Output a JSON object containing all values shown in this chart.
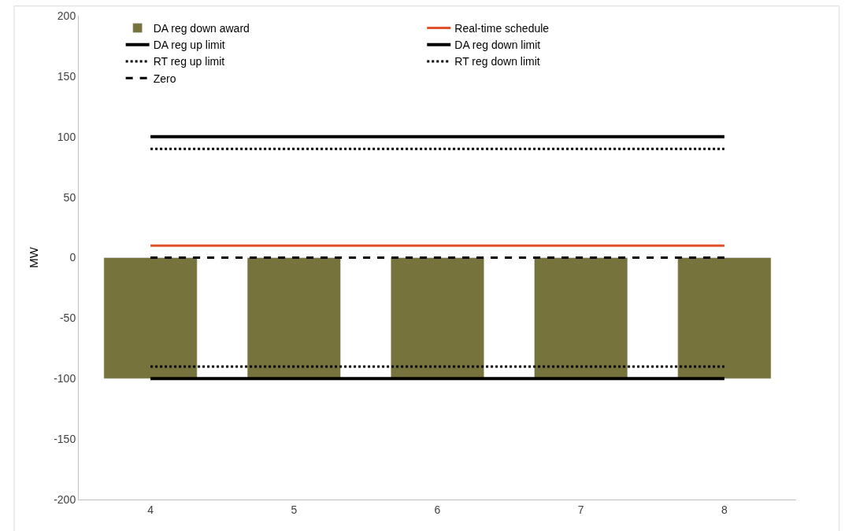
{
  "chart_data": {
    "type": "bar",
    "ylabel": "MW",
    "categories": [
      "4",
      "5",
      "6",
      "7",
      "8"
    ],
    "series": [
      {
        "name": "DA reg down award",
        "color": "#77733d",
        "values": [
          -100,
          -100,
          -100,
          -100,
          -100
        ]
      },
      {
        "name": "Real-time schedule",
        "type": "line",
        "color": "#e0502a",
        "line_style": "solid",
        "values": [
          10,
          10,
          10,
          10,
          10
        ]
      },
      {
        "name": "DA reg up limit",
        "type": "line",
        "color": "#000000",
        "line_style": "solid",
        "values": [
          100,
          100,
          100,
          100,
          100
        ]
      },
      {
        "name": "DA reg down limit",
        "type": "line",
        "color": "#000000",
        "line_style": "solid",
        "values": [
          -100,
          -100,
          -100,
          -100,
          -100
        ]
      },
      {
        "name": "RT reg up limit",
        "type": "line",
        "color": "#000000",
        "line_style": "dotted",
        "values": [
          90,
          90,
          90,
          90,
          90
        ]
      },
      {
        "name": "RT reg down limit",
        "type": "line",
        "color": "#000000",
        "line_style": "dotted",
        "values": [
          -90,
          -90,
          -90,
          -90,
          -90
        ]
      },
      {
        "name": "Zero",
        "type": "line",
        "color": "#000000",
        "line_style": "dashed",
        "values": [
          0,
          0,
          0,
          0,
          0
        ]
      }
    ],
    "ylim": [
      -200,
      200
    ],
    "yticks": [
      -200,
      -150,
      -100,
      -50,
      0,
      50,
      100,
      150,
      200
    ],
    "grid": false,
    "legend": "top",
    "marker": "none"
  }
}
